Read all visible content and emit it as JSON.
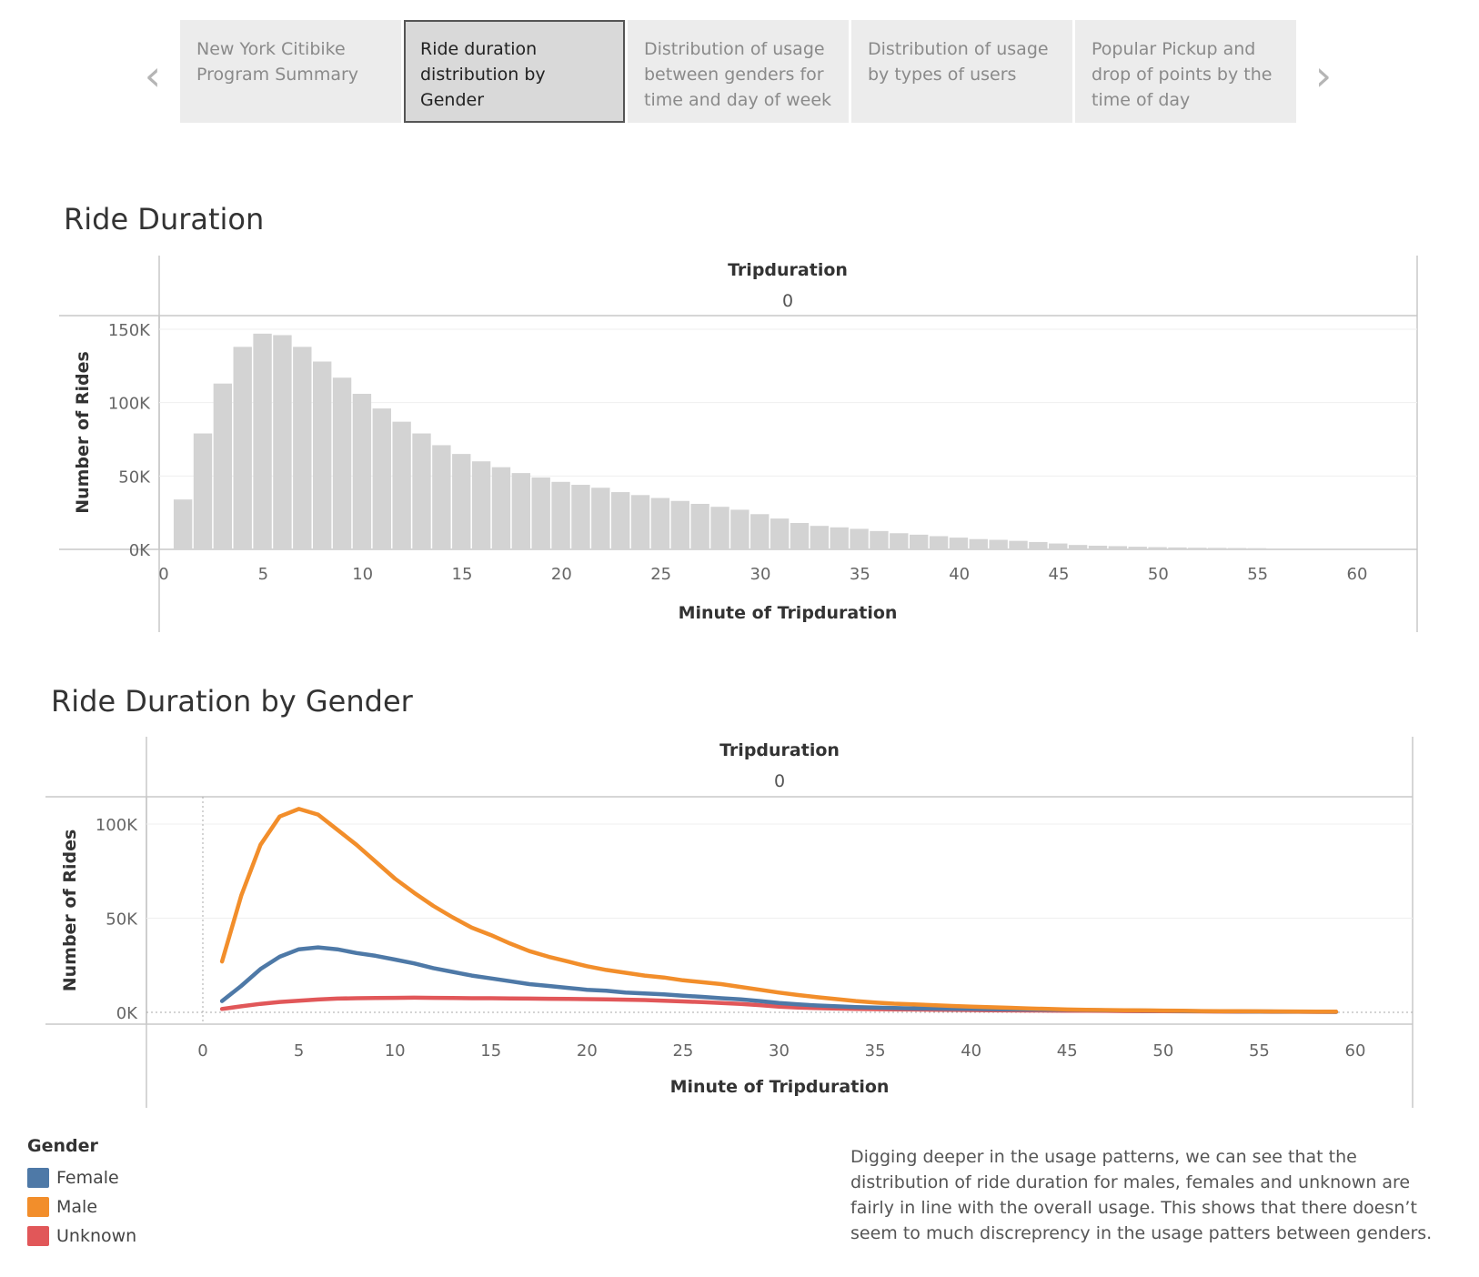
{
  "nav": {
    "prev_icon": "chevron-left-icon",
    "next_icon": "chevron-right-icon",
    "story_points": [
      {
        "label": "New York Citibike Program Summary",
        "active": false
      },
      {
        "label": "Ride duration distribution by Gender",
        "active": true
      },
      {
        "label": "Distribution of usage between genders for time and day of week",
        "active": false
      },
      {
        "label": "Distribution of usage by types of users",
        "active": false
      },
      {
        "label": "Popular Pickup and drop of points by the time of day",
        "active": false
      }
    ]
  },
  "colors": {
    "bar": "#d3d3d3",
    "female": "#4e79a7",
    "male": "#f28e2b",
    "unknown": "#e15759"
  },
  "chart_data": [
    {
      "type": "bar",
      "title": "Ride Duration",
      "column_header": "Tripduration",
      "column_value": "0",
      "xlabel": "Minute of Tripduration",
      "ylabel": "Number of Rides",
      "xlim": [
        0,
        61
      ],
      "ylim": [
        0,
        150000
      ],
      "x_ticks": [
        0,
        5,
        10,
        15,
        20,
        25,
        30,
        35,
        40,
        45,
        50,
        55,
        60
      ],
      "y_ticks": [
        {
          "value": 0,
          "label": "0K"
        },
        {
          "value": 50000,
          "label": "50K"
        },
        {
          "value": 100000,
          "label": "100K"
        },
        {
          "value": 150000,
          "label": "150K"
        }
      ],
      "x": [
        1,
        2,
        3,
        4,
        5,
        6,
        7,
        8,
        9,
        10,
        11,
        12,
        13,
        14,
        15,
        16,
        17,
        18,
        19,
        20,
        21,
        22,
        23,
        24,
        25,
        26,
        27,
        28,
        29,
        30,
        31,
        32,
        33,
        34,
        35,
        36,
        37,
        38,
        39,
        40,
        41,
        42,
        43,
        44,
        45,
        46,
        47,
        48,
        49,
        50,
        51,
        52,
        53,
        54,
        55
      ],
      "values": [
        34000,
        79000,
        113000,
        138000,
        147000,
        146000,
        138000,
        128000,
        117000,
        106000,
        96000,
        87000,
        79000,
        71000,
        65000,
        60000,
        56000,
        52000,
        49000,
        46000,
        44000,
        42000,
        39000,
        37000,
        35000,
        33000,
        31000,
        29000,
        27000,
        24000,
        21000,
        18000,
        16000,
        15000,
        14000,
        12500,
        11000,
        10000,
        9000,
        8000,
        7000,
        6500,
        5800,
        5000,
        4000,
        3000,
        2500,
        2200,
        1800,
        1500,
        1300,
        1100,
        1000,
        900,
        800
      ]
    },
    {
      "type": "line",
      "title": "Ride Duration by Gender",
      "column_header": "Tripduration",
      "column_value": "0",
      "xlabel": "Minute of Tripduration",
      "ylabel": "Number of Rides",
      "xlim": [
        -3,
        61
      ],
      "ylim": [
        -6000,
        114000
      ],
      "x_ticks": [
        0,
        5,
        10,
        15,
        20,
        25,
        30,
        35,
        40,
        45,
        50,
        55,
        60
      ],
      "y_ticks": [
        {
          "value": 0,
          "label": "0K"
        },
        {
          "value": 50000,
          "label": "50K"
        },
        {
          "value": 100000,
          "label": "100K"
        }
      ],
      "x": [
        1,
        2,
        3,
        4,
        5,
        6,
        7,
        8,
        9,
        10,
        11,
        12,
        13,
        14,
        15,
        16,
        17,
        18,
        19,
        20,
        21,
        22,
        23,
        24,
        25,
        26,
        27,
        28,
        29,
        30,
        31,
        32,
        33,
        34,
        35,
        36,
        37,
        38,
        39,
        40,
        41,
        42,
        43,
        44,
        45,
        46,
        47,
        48,
        49,
        50,
        51,
        52,
        53,
        54,
        55,
        56,
        57,
        58,
        59
      ],
      "series": [
        {
          "name": "Female",
          "color_key": "female",
          "values": [
            6000,
            14000,
            23000,
            29500,
            33500,
            34500,
            33500,
            31500,
            30000,
            28000,
            26000,
            23500,
            21500,
            19500,
            18000,
            16500,
            15000,
            14000,
            13000,
            12000,
            11500,
            10500,
            10000,
            9500,
            8800,
            8200,
            7500,
            6900,
            6000,
            5000,
            4200,
            3600,
            3200,
            2800,
            2500,
            2300,
            2100,
            2000,
            1900,
            1800,
            1700,
            1600,
            1500,
            1400,
            1300,
            1200,
            1100,
            1000,
            900,
            800,
            700,
            600,
            550,
            500,
            450,
            400,
            350,
            300,
            250
          ]
        },
        {
          "name": "Male",
          "color_key": "male",
          "values": [
            27000,
            62000,
            89000,
            104000,
            108000,
            105000,
            97000,
            89000,
            80000,
            71000,
            63500,
            56500,
            50500,
            45000,
            41000,
            36500,
            32500,
            29500,
            27000,
            24500,
            22500,
            21000,
            19500,
            18500,
            17000,
            16000,
            15000,
            13500,
            12000,
            10500,
            9200,
            8000,
            7000,
            6000,
            5200,
            4600,
            4200,
            3800,
            3400,
            3000,
            2700,
            2400,
            2100,
            1800,
            1500,
            1300,
            1200,
            1100,
            1000,
            900,
            800,
            700,
            650,
            600,
            550,
            500,
            450,
            400,
            350
          ]
        },
        {
          "name": "Unknown",
          "color_key": "unknown",
          "values": [
            1800,
            3200,
            4500,
            5500,
            6200,
            6800,
            7300,
            7500,
            7600,
            7700,
            7800,
            7700,
            7600,
            7500,
            7500,
            7400,
            7300,
            7200,
            7100,
            7000,
            6900,
            6700,
            6500,
            6200,
            5800,
            5400,
            5000,
            4500,
            3800,
            3000,
            2500,
            2200,
            2000,
            1800,
            1700,
            1600,
            1500,
            1400,
            1300,
            1200,
            1100,
            1000,
            950,
            900,
            850,
            800,
            750,
            700,
            650,
            600,
            550,
            500,
            450,
            400,
            350,
            300,
            300,
            250,
            250
          ]
        }
      ]
    }
  ],
  "legend": {
    "title": "Gender",
    "items": [
      {
        "label": "Female",
        "color_key": "female"
      },
      {
        "label": "Male",
        "color_key": "male"
      },
      {
        "label": "Unknown",
        "color_key": "unknown"
      }
    ]
  },
  "caption": "Digging deeper in the usage patterns, we can see that the distribution of ride duration for males, females and unknown are fairly in line with the overall usage. This shows that there doesn’t seem to much discreprency in the usage patters between genders."
}
